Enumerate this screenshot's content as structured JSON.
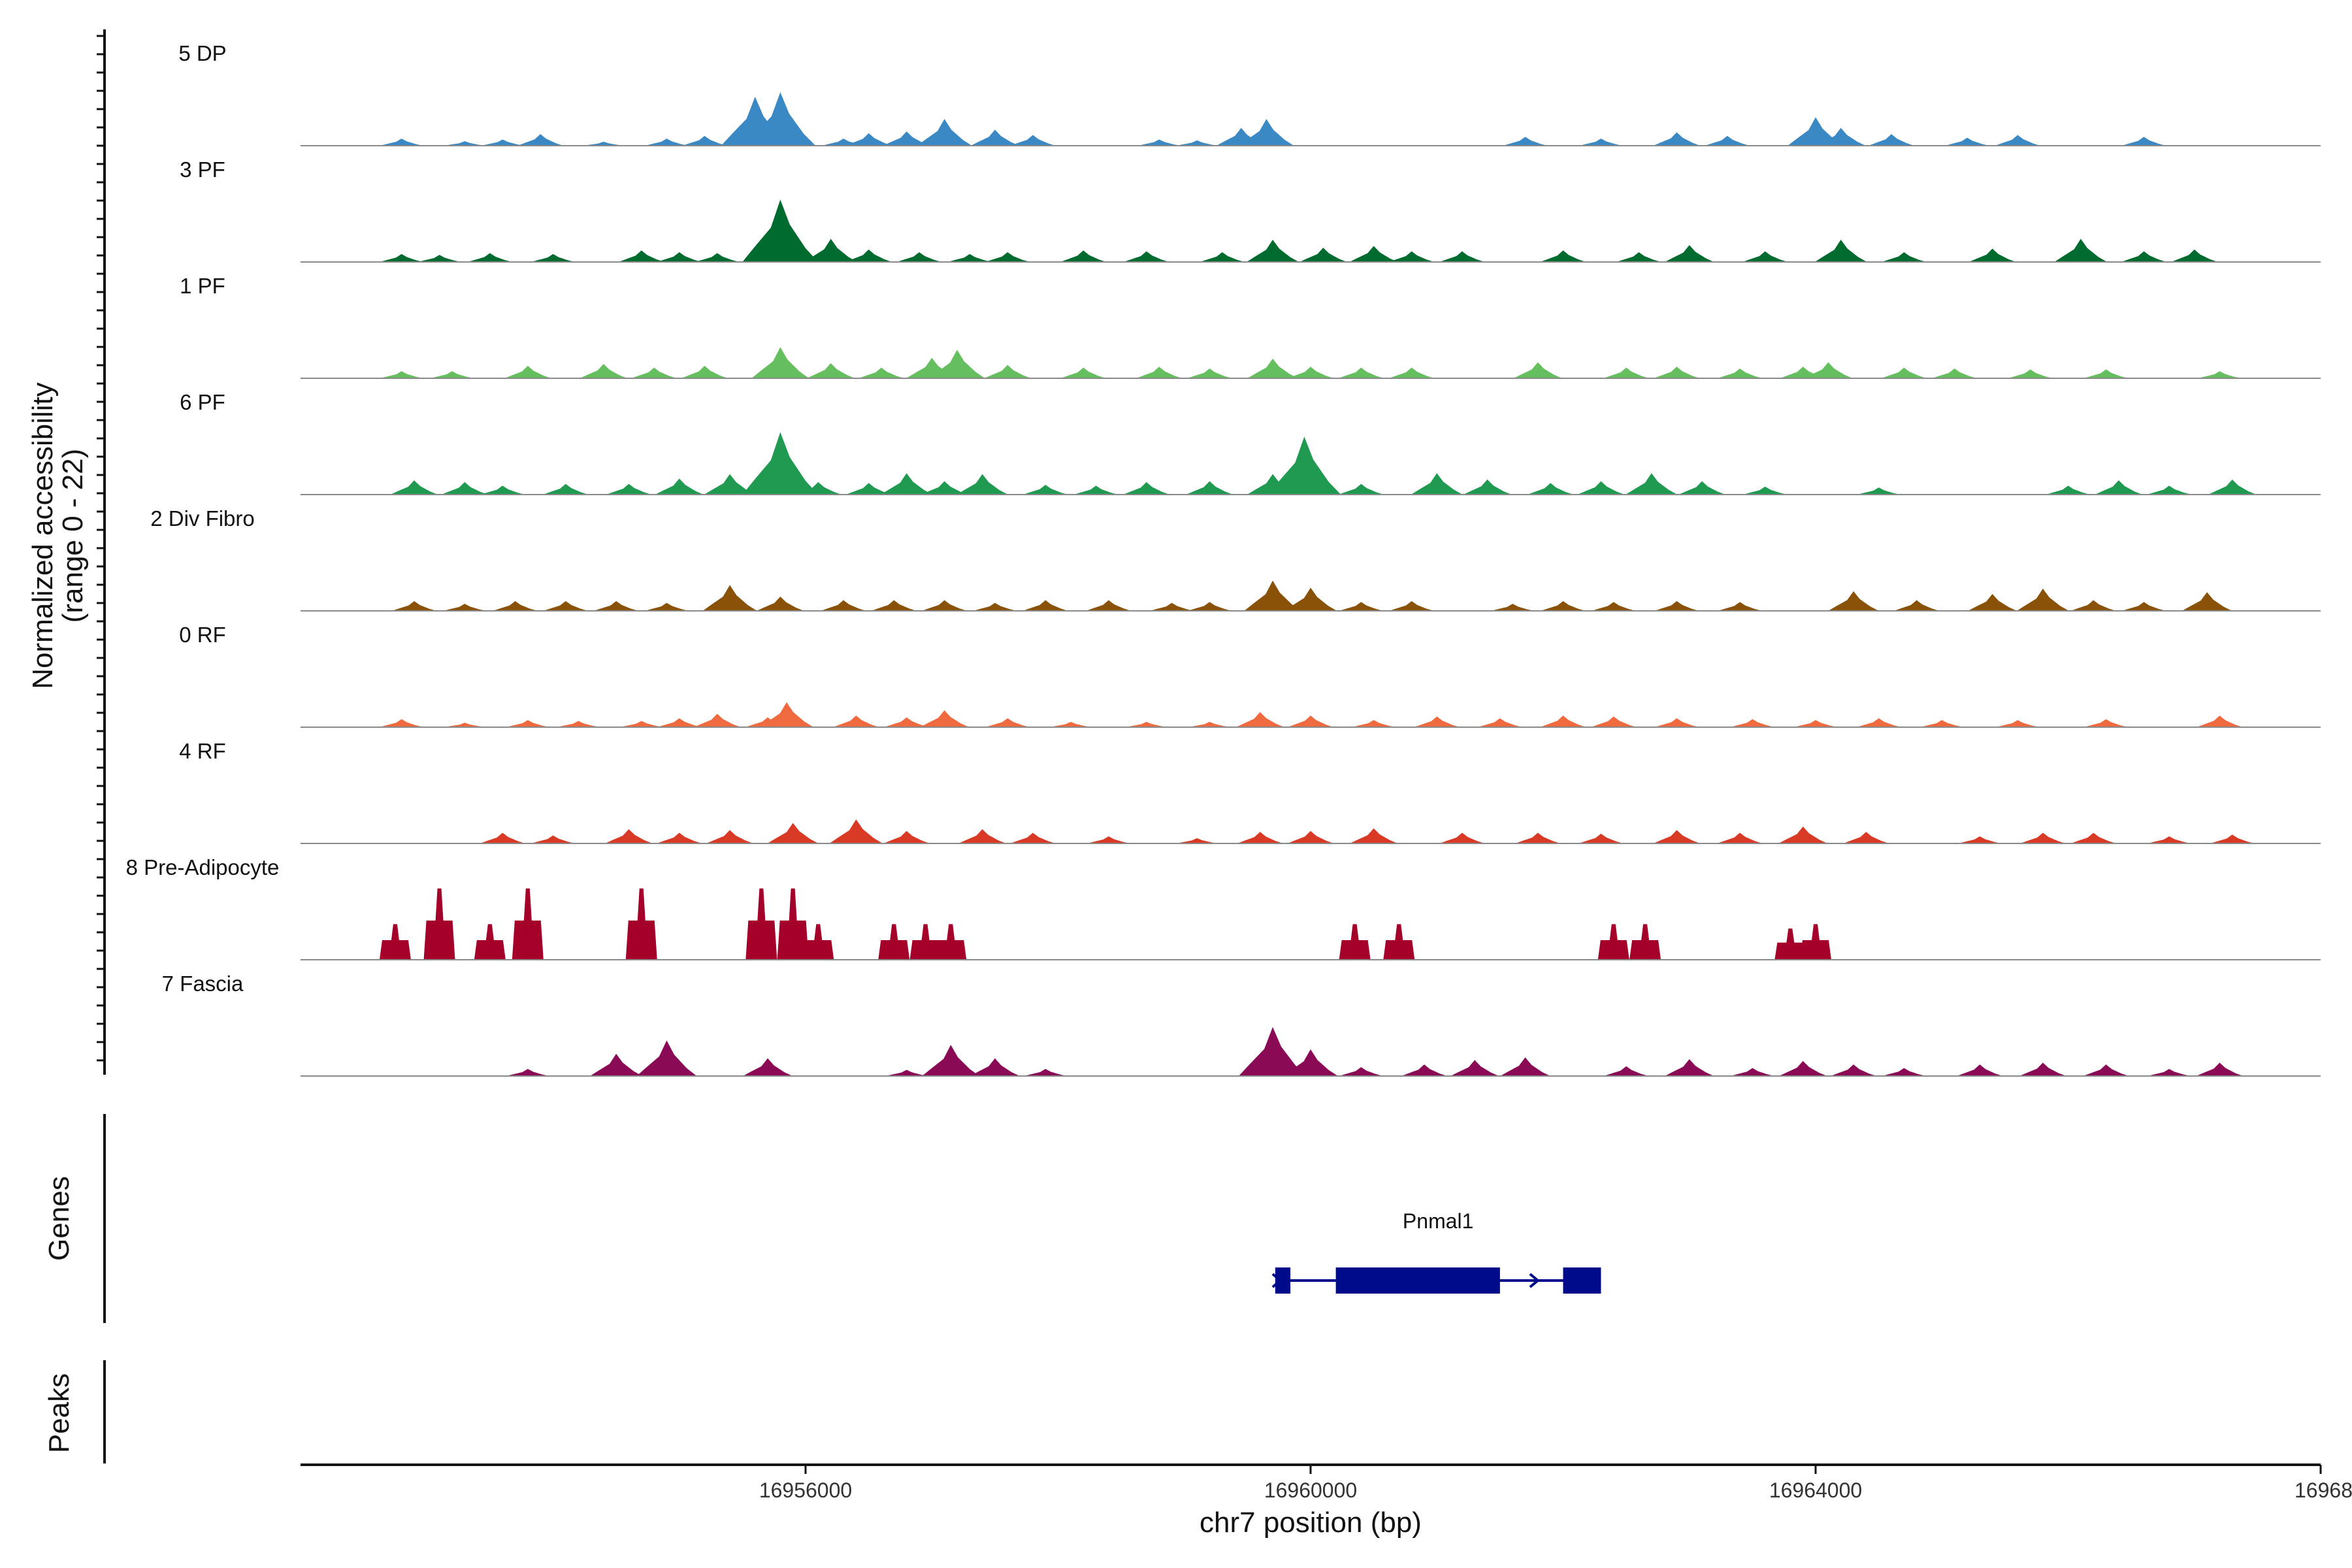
{
  "chart_data": {
    "type": "area",
    "title": "",
    "region": {
      "chrom": "chr7",
      "start": 16952000,
      "end": 16968000
    },
    "xlabel": "chr7 position (bp)",
    "ylabel_line1": "Normalized accessibility",
    "ylabel_line2": "(range 0 - 22)",
    "ylim": [
      0,
      22
    ],
    "x_ticks": [
      {
        "value": 16956000,
        "label": "16956000"
      },
      {
        "value": 16960000,
        "label": "16960000"
      },
      {
        "value": 16964000,
        "label": "16964000"
      },
      {
        "value": 16968000,
        "label": "16968000"
      }
    ],
    "series": [
      {
        "name": "5 DP",
        "color": "#3a88c4",
        "peaks": [
          [
            16952800,
            1.6
          ],
          [
            16953300,
            1
          ],
          [
            16953600,
            1.4
          ],
          [
            16953900,
            2.6
          ],
          [
            16954400,
            0.9
          ],
          [
            16954900,
            1.6
          ],
          [
            16955200,
            2.2
          ],
          [
            16955600,
            11
          ],
          [
            16955800,
            12
          ],
          [
            16956300,
            1.6
          ],
          [
            16956500,
            2.8
          ],
          [
            16956800,
            3.2
          ],
          [
            16957100,
            6
          ],
          [
            16957500,
            3.6
          ],
          [
            16957800,
            2.4
          ],
          [
            16958800,
            1.4
          ],
          [
            16959100,
            1.2
          ],
          [
            16959450,
            4
          ],
          [
            16959650,
            6
          ],
          [
            16961700,
            2
          ],
          [
            16962300,
            1.6
          ],
          [
            16962900,
            3
          ],
          [
            16963300,
            2.2
          ],
          [
            16964000,
            6.4
          ],
          [
            16964200,
            4
          ],
          [
            16964600,
            2.6
          ],
          [
            16965200,
            1.8
          ],
          [
            16965600,
            2.4
          ],
          [
            16966600,
            2
          ]
        ]
      },
      {
        "name": "3 PF",
        "color": "#006b2e",
        "peaks": [
          [
            16952800,
            1.8
          ],
          [
            16953100,
            1.6
          ],
          [
            16953500,
            2
          ],
          [
            16954000,
            1.8
          ],
          [
            16954700,
            2.6
          ],
          [
            16955000,
            2.2
          ],
          [
            16955300,
            2
          ],
          [
            16955800,
            14
          ],
          [
            16956200,
            5.2
          ],
          [
            16956500,
            2.8
          ],
          [
            16956900,
            2.2
          ],
          [
            16957300,
            1.8
          ],
          [
            16957600,
            2.2
          ],
          [
            16958200,
            2.6
          ],
          [
            16958700,
            2.4
          ],
          [
            16959300,
            2.2
          ],
          [
            16959700,
            5
          ],
          [
            16960100,
            3.2
          ],
          [
            16960500,
            3.6
          ],
          [
            16960800,
            2.4
          ],
          [
            16961200,
            2.4
          ],
          [
            16962000,
            2.6
          ],
          [
            16962600,
            2.2
          ],
          [
            16963000,
            3.8
          ],
          [
            16963600,
            2.4
          ],
          [
            16964200,
            5
          ],
          [
            16964700,
            2.2
          ],
          [
            16965400,
            3
          ],
          [
            16966100,
            5.2
          ],
          [
            16966600,
            2.4
          ],
          [
            16967000,
            2.8
          ]
        ]
      },
      {
        "name": "1 PF",
        "color": "#66bf5e",
        "peaks": [
          [
            16952800,
            1.6
          ],
          [
            16953200,
            1.6
          ],
          [
            16953800,
            2.8
          ],
          [
            16954400,
            3.2
          ],
          [
            16954800,
            2.4
          ],
          [
            16955200,
            2.8
          ],
          [
            16955800,
            7
          ],
          [
            16956200,
            3.4
          ],
          [
            16956600,
            2.4
          ],
          [
            16957000,
            4.6
          ],
          [
            16957200,
            6.4
          ],
          [
            16957600,
            3
          ],
          [
            16958200,
            2.4
          ],
          [
            16958800,
            2.6
          ],
          [
            16959200,
            2.2
          ],
          [
            16959700,
            4.4
          ],
          [
            16960000,
            2.6
          ],
          [
            16960400,
            2.4
          ],
          [
            16960800,
            2.4
          ],
          [
            16961800,
            3.6
          ],
          [
            16962500,
            2.4
          ],
          [
            16962900,
            2.6
          ],
          [
            16963400,
            2.2
          ],
          [
            16963900,
            2.6
          ],
          [
            16964100,
            3.6
          ],
          [
            16964700,
            2.4
          ],
          [
            16965100,
            2.2
          ],
          [
            16965700,
            2
          ],
          [
            16966300,
            2
          ],
          [
            16967200,
            1.6
          ]
        ]
      },
      {
        "name": "6 PF",
        "color": "#1f9a50",
        "peaks": [
          [
            16952900,
            3.2
          ],
          [
            16953300,
            2.8
          ],
          [
            16953600,
            2
          ],
          [
            16954100,
            2.4
          ],
          [
            16954600,
            2.4
          ],
          [
            16955000,
            3.6
          ],
          [
            16955400,
            4.6
          ],
          [
            16955800,
            14
          ],
          [
            16956100,
            2.8
          ],
          [
            16956500,
            2.6
          ],
          [
            16956800,
            4.8
          ],
          [
            16957100,
            3
          ],
          [
            16957400,
            4.6
          ],
          [
            16957900,
            2.2
          ],
          [
            16958300,
            2
          ],
          [
            16958700,
            2.8
          ],
          [
            16959200,
            3
          ],
          [
            16959700,
            4.6
          ],
          [
            16959950,
            13
          ],
          [
            16960400,
            2.4
          ],
          [
            16961000,
            4.8
          ],
          [
            16961400,
            3.4
          ],
          [
            16961900,
            2.6
          ],
          [
            16962300,
            3
          ],
          [
            16962700,
            4.8
          ],
          [
            16963100,
            3
          ],
          [
            16963600,
            1.8
          ],
          [
            16964500,
            1.6
          ],
          [
            16966000,
            2
          ],
          [
            16966400,
            3.2
          ],
          [
            16966800,
            2
          ],
          [
            16967300,
            3.4
          ]
        ]
      },
      {
        "name": "2 Div Fibro",
        "color": "#8a5208",
        "peaks": [
          [
            16952900,
            2.2
          ],
          [
            16953300,
            1.6
          ],
          [
            16953700,
            2.2
          ],
          [
            16954100,
            2.2
          ],
          [
            16954500,
            2.2
          ],
          [
            16954900,
            1.8
          ],
          [
            16955400,
            5.8
          ],
          [
            16955800,
            3.2
          ],
          [
            16956300,
            2.4
          ],
          [
            16956700,
            2.4
          ],
          [
            16957100,
            2.4
          ],
          [
            16957500,
            1.8
          ],
          [
            16957900,
            2.4
          ],
          [
            16958400,
            2.4
          ],
          [
            16958900,
            1.8
          ],
          [
            16959200,
            2
          ],
          [
            16959700,
            6.8
          ],
          [
            16960000,
            5.2
          ],
          [
            16960400,
            2
          ],
          [
            16960800,
            2.2
          ],
          [
            16961600,
            1.6
          ],
          [
            16962000,
            2.2
          ],
          [
            16962400,
            2
          ],
          [
            16962900,
            2.2
          ],
          [
            16963400,
            2
          ],
          [
            16964300,
            4.4
          ],
          [
            16964800,
            2.4
          ],
          [
            16965400,
            3.8
          ],
          [
            16965800,
            5
          ],
          [
            16966200,
            2.4
          ],
          [
            16966600,
            2
          ],
          [
            16967100,
            4.2
          ]
        ]
      },
      {
        "name": "0 RF",
        "color": "#ef6a3e",
        "peaks": [
          [
            16952800,
            1.8
          ],
          [
            16953300,
            1
          ],
          [
            16953800,
            1.6
          ],
          [
            16954200,
            1.4
          ],
          [
            16954700,
            1.4
          ],
          [
            16955000,
            2
          ],
          [
            16955300,
            3
          ],
          [
            16955700,
            2.2
          ],
          [
            16955850,
            5.6
          ],
          [
            16956400,
            2.6
          ],
          [
            16956800,
            2.2
          ],
          [
            16957100,
            3.8
          ],
          [
            16957600,
            2
          ],
          [
            16958100,
            1.2
          ],
          [
            16958700,
            1.2
          ],
          [
            16959200,
            1.2
          ],
          [
            16959600,
            3.4
          ],
          [
            16960000,
            2.6
          ],
          [
            16960500,
            1.6
          ],
          [
            16961000,
            2.4
          ],
          [
            16961500,
            2
          ],
          [
            16962000,
            2.6
          ],
          [
            16962400,
            2.4
          ],
          [
            16962900,
            2
          ],
          [
            16963500,
            1.8
          ],
          [
            16964000,
            1.6
          ],
          [
            16964500,
            2
          ],
          [
            16965000,
            1.6
          ],
          [
            16965600,
            1.6
          ],
          [
            16966300,
            1.8
          ],
          [
            16967200,
            2.6
          ]
        ]
      },
      {
        "name": "4 RF",
        "color": "#d83a26",
        "peaks": [
          [
            16953600,
            2.4
          ],
          [
            16954000,
            1.8
          ],
          [
            16954600,
            3.2
          ],
          [
            16955000,
            2.4
          ],
          [
            16955400,
            3
          ],
          [
            16955900,
            4.6
          ],
          [
            16956400,
            5.4
          ],
          [
            16956800,
            2.8
          ],
          [
            16957400,
            3.2
          ],
          [
            16957800,
            2.4
          ],
          [
            16958400,
            1.6
          ],
          [
            16959100,
            1.2
          ],
          [
            16959600,
            2.6
          ],
          [
            16960000,
            2.8
          ],
          [
            16960500,
            3.4
          ],
          [
            16961200,
            2.4
          ],
          [
            16961800,
            2.4
          ],
          [
            16962300,
            2.2
          ],
          [
            16962900,
            3
          ],
          [
            16963400,
            2.4
          ],
          [
            16963900,
            3.8
          ],
          [
            16964400,
            2.6
          ],
          [
            16965300,
            1.6
          ],
          [
            16965800,
            2.4
          ],
          [
            16966200,
            2.4
          ],
          [
            16966800,
            1.6
          ],
          [
            16967300,
            2
          ]
        ]
      },
      {
        "name": "8 Pre-Adipocyte",
        "color": "#a5002a",
        "peaks": [
          [
            16952750,
            8
          ],
          [
            16953100,
            16
          ],
          [
            16953500,
            8
          ],
          [
            16953800,
            16
          ],
          [
            16954700,
            16
          ],
          [
            16955650,
            16
          ],
          [
            16955900,
            16
          ],
          [
            16956100,
            8
          ],
          [
            16956700,
            8
          ],
          [
            16956950,
            8
          ],
          [
            16957150,
            8
          ],
          [
            16960350,
            8
          ],
          [
            16960700,
            8
          ],
          [
            16962400,
            8
          ],
          [
            16962650,
            8
          ],
          [
            16963800,
            7
          ],
          [
            16964000,
            8
          ]
        ]
      },
      {
        "name": "7 Fascia",
        "color": "#8b0a55",
        "peaks": [
          [
            16953800,
            1.6
          ],
          [
            16954500,
            5
          ],
          [
            16954900,
            8
          ],
          [
            16955700,
            4
          ],
          [
            16956800,
            1.4
          ],
          [
            16957150,
            7
          ],
          [
            16957500,
            4
          ],
          [
            16957900,
            1.6
          ],
          [
            16959700,
            11
          ],
          [
            16960000,
            6
          ],
          [
            16960400,
            2
          ],
          [
            16960900,
            2.6
          ],
          [
            16961300,
            3.6
          ],
          [
            16961700,
            4.2
          ],
          [
            16962500,
            2.2
          ],
          [
            16963000,
            3.8
          ],
          [
            16963500,
            1.8
          ],
          [
            16963900,
            3.4
          ],
          [
            16964300,
            2.6
          ],
          [
            16964700,
            1.8
          ],
          [
            16965300,
            2.6
          ],
          [
            16965800,
            3
          ],
          [
            16966300,
            2.6
          ],
          [
            16966800,
            1.6
          ],
          [
            16967200,
            3
          ]
        ]
      }
    ],
    "genes": [
      {
        "name": "Pnmal1",
        "strand": "+",
        "start": 16959720,
        "end": 16962300,
        "exons": [
          [
            16959720,
            16959840
          ],
          [
            16960200,
            16961500
          ],
          [
            16962000,
            16962300
          ]
        ]
      }
    ],
    "peaks_track_label": "Peaks",
    "genes_track_label": "Genes",
    "gene_color": "#000b8c"
  }
}
